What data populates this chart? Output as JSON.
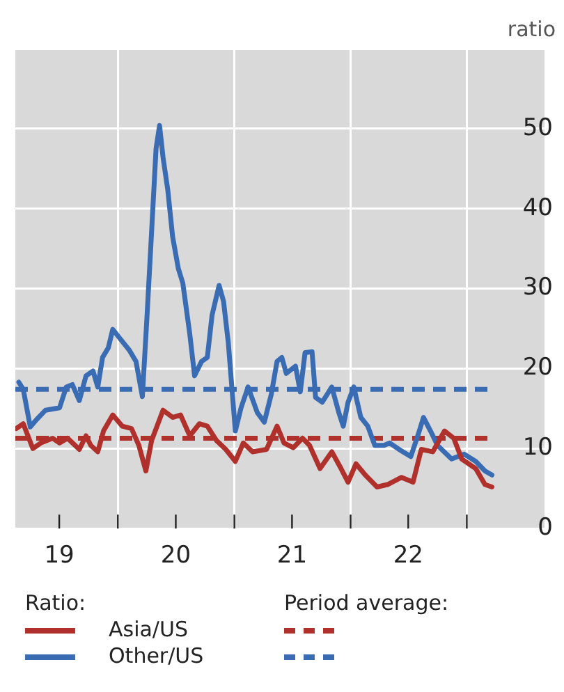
{
  "chart_data": {
    "type": "line",
    "ylabel": "ratio",
    "legend_title": "Ratio:",
    "annotations": [
      "Period average:"
    ],
    "legend": "bottom",
    "grid": true,
    "line_style": "solid",
    "marker": "none",
    "xlim": [
      "2019-02-13",
      "2023-09-02"
    ],
    "xticks": [
      {
        "value": "2019-07-01",
        "label": "19"
      },
      {
        "value": "2020-01-01",
        "label": null
      },
      {
        "value": "2020-07-01",
        "label": "20"
      },
      {
        "value": "2021-01-01",
        "label": null
      },
      {
        "value": "2021-07-01",
        "label": "21"
      },
      {
        "value": "2022-01-01",
        "label": null
      },
      {
        "value": "2022-07-01",
        "label": "22"
      },
      {
        "value": "2023-01-01",
        "label": null
      }
    ],
    "ylim": [
      0,
      60
    ],
    "yticks": [
      0,
      10,
      20,
      30,
      40,
      50,
      {
        "value": 60,
        "label": null
      }
    ],
    "series": [
      {
        "name": "Asia/US",
        "color": "#b0302c",
        "x": [
          "2019-02-16",
          "2019-03-10",
          "2019-04-09",
          "2019-05-04",
          "2019-06-10",
          "2019-07-02",
          "2019-07-27",
          "2019-09-02",
          "2019-09-23",
          "2019-10-08",
          "2019-10-30",
          "2019-11-17",
          "2019-12-16",
          "2020-01-15",
          "2020-02-13",
          "2020-03-07",
          "2020-03-29",
          "2020-04-16",
          "2020-05-22",
          "2020-06-21",
          "2020-07-16",
          "2020-08-14",
          "2020-09-13",
          "2020-10-08",
          "2020-11-06",
          "2020-12-05",
          "2021-01-04",
          "2021-01-29",
          "2021-02-27",
          "2021-04-12",
          "2021-05-15",
          "2021-06-06",
          "2021-07-05",
          "2021-08-03",
          "2021-08-25",
          "2021-09-27",
          "2021-11-03",
          "2021-12-02",
          "2021-12-24",
          "2022-01-18",
          "2022-02-16",
          "2022-03-25",
          "2022-04-27",
          "2022-06-10",
          "2022-07-16",
          "2022-08-11",
          "2022-09-16",
          "2022-10-23",
          "2022-11-21",
          "2022-12-16",
          "2023-01-29",
          "2023-02-27",
          "2023-03-21"
        ],
        "values": [
          12.5,
          13.1,
          10.0,
          10.7,
          11.3,
          10.7,
          11.3,
          9.9,
          11.6,
          10.4,
          9.6,
          12.2,
          14.2,
          12.8,
          12.5,
          10.4,
          7.2,
          11.0,
          14.8,
          13.9,
          14.2,
          11.6,
          13.1,
          12.8,
          11.0,
          9.9,
          8.4,
          10.7,
          9.6,
          9.9,
          12.8,
          10.7,
          10.1,
          11.3,
          10.4,
          7.5,
          9.6,
          7.5,
          5.8,
          8.1,
          6.7,
          5.2,
          5.5,
          6.4,
          5.8,
          9.9,
          9.6,
          12.2,
          11.3,
          8.7,
          7.5,
          5.5,
          5.2
        ]
      },
      {
        "name": "Other/US",
        "color": "#3a6cb4",
        "x": [
          "2019-02-24",
          "2019-03-10",
          "2019-04-01",
          "2019-04-20",
          "2019-05-19",
          "2019-07-02",
          "2019-07-23",
          "2019-08-11",
          "2019-09-02",
          "2019-09-23",
          "2019-10-15",
          "2019-10-30",
          "2019-11-14",
          "2019-12-02",
          "2019-12-16",
          "2020-01-07",
          "2020-02-06",
          "2020-02-27",
          "2020-03-18",
          "2020-04-01",
          "2020-04-16",
          "2020-04-30",
          "2020-05-11",
          "2020-05-22",
          "2020-06-06",
          "2020-06-21",
          "2020-07-09",
          "2020-07-23",
          "2020-08-14",
          "2020-08-29",
          "2020-09-20",
          "2020-10-08",
          "2020-10-23",
          "2020-11-14",
          "2020-11-28",
          "2020-12-13",
          "2021-01-04",
          "2021-01-22",
          "2021-02-13",
          "2021-03-14",
          "2021-04-05",
          "2021-04-27",
          "2021-05-15",
          "2021-05-30",
          "2021-06-13",
          "2021-07-12",
          "2021-07-27",
          "2021-08-11",
          "2021-09-02",
          "2021-09-13",
          "2021-10-04",
          "2021-11-03",
          "2021-11-25",
          "2021-12-09",
          "2021-12-24",
          "2022-01-11",
          "2022-02-02",
          "2022-02-24",
          "2022-03-18",
          "2022-04-16",
          "2022-05-04",
          "2022-06-02",
          "2022-07-09",
          "2022-07-31",
          "2022-08-18",
          "2022-09-09",
          "2022-10-01",
          "2022-11-14",
          "2022-12-24",
          "2023-01-29",
          "2023-02-27",
          "2023-03-21"
        ],
        "values": [
          18.3,
          17.4,
          12.7,
          13.6,
          14.8,
          15.1,
          17.7,
          18.0,
          16.0,
          19.1,
          19.7,
          17.7,
          21.4,
          22.6,
          24.9,
          23.8,
          22.3,
          20.9,
          16.5,
          26.1,
          37.1,
          47.5,
          50.4,
          46.4,
          42.3,
          36.5,
          32.5,
          30.7,
          24.3,
          19.1,
          20.9,
          21.4,
          26.7,
          30.4,
          28.4,
          23.2,
          12.2,
          15.1,
          17.7,
          14.5,
          13.3,
          16.8,
          20.9,
          21.4,
          19.4,
          20.3,
          17.1,
          22.0,
          22.1,
          16.4,
          15.8,
          17.7,
          14.5,
          12.8,
          15.8,
          17.7,
          13.9,
          12.8,
          10.4,
          10.4,
          10.7,
          9.9,
          9.0,
          11.6,
          13.9,
          12.2,
          10.4,
          8.7,
          9.3,
          8.4,
          7.2,
          6.7
        ]
      }
    ],
    "ref_lines": [
      {
        "axis": "y",
        "value": 11.3,
        "label": null,
        "color": "#b0302c",
        "line_style": "dashed"
      },
      {
        "axis": "y",
        "value": 17.4,
        "label": null,
        "color": "#3a6cb4",
        "line_style": "dashed"
      }
    ]
  }
}
